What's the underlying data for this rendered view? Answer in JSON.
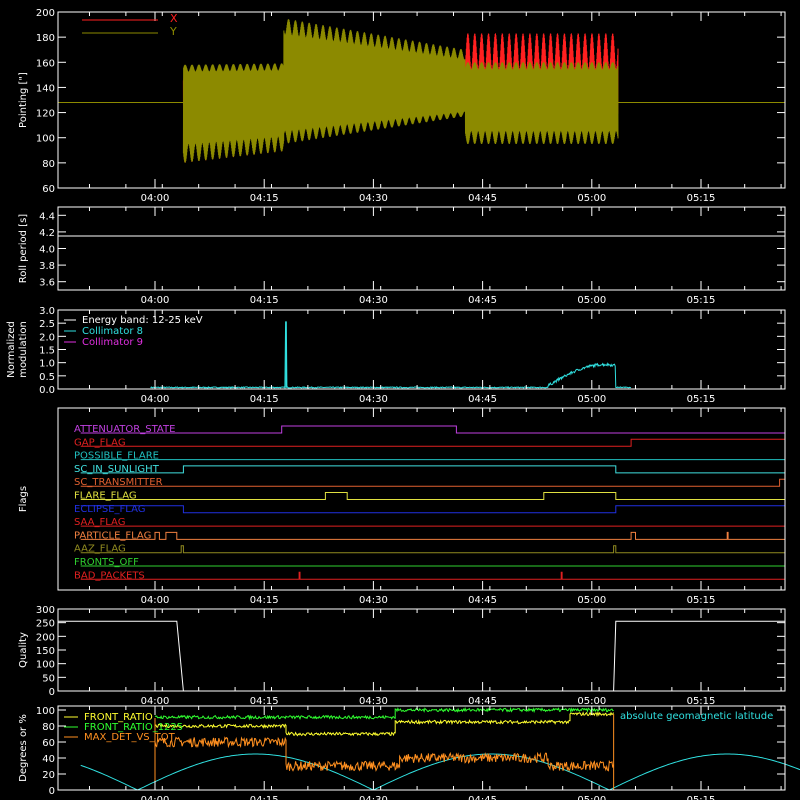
{
  "time_ticks": [
    "04:00",
    "04:15",
    "04:30",
    "04:45",
    "05:00",
    "05:15"
  ],
  "panels": {
    "pointing": {
      "ylabel": "Pointing [\"]",
      "yticks": [
        "60",
        "80",
        "100",
        "120",
        "140",
        "160",
        "180",
        "200"
      ],
      "legend": [
        {
          "name": "X",
          "color": "#ff2020"
        },
        {
          "name": "Y",
          "color": "#8c8a00"
        }
      ]
    },
    "roll": {
      "ylabel": "Roll period [s]",
      "yticks": [
        "3.6",
        "3.8",
        "4.0",
        "4.2",
        "4.4"
      ]
    },
    "modulation": {
      "ylabel_line1": "Normalized",
      "ylabel_line2": "modulation",
      "yticks": [
        "0.0",
        "0.5",
        "1.0",
        "1.5",
        "2.0",
        "2.5",
        "3.0"
      ],
      "legend": [
        {
          "name": "Energy band: 12-25 keV",
          "color": "#ffffff"
        },
        {
          "name": "Collimator 8",
          "color": "#30e0e0"
        },
        {
          "name": "Collimator 9",
          "color": "#e030e0"
        }
      ]
    },
    "flags": {
      "ylabel": "Flags",
      "rows": [
        {
          "name": "ATTENUATOR_STATE",
          "color": "#c040e0"
        },
        {
          "name": "GAP_FLAG",
          "color": "#e02020"
        },
        {
          "name": "POSSIBLE_FLARE",
          "color": "#20c0c0"
        },
        {
          "name": "SC_IN_SUNLIGHT",
          "color": "#40e0e0"
        },
        {
          "name": "SC_TRANSMITTER",
          "color": "#e06030"
        },
        {
          "name": "FLARE_FLAG",
          "color": "#e0e040"
        },
        {
          "name": "ECLIPSE_FLAG",
          "color": "#2030e0"
        },
        {
          "name": "SAA_FLAG",
          "color": "#e02020"
        },
        {
          "name": "PARTICLE_FLAG",
          "color": "#f08040"
        },
        {
          "name": "AAZ_FLAG",
          "color": "#908a20"
        },
        {
          "name": "FRONTS_OFF",
          "color": "#30d030"
        },
        {
          "name": "BAD_PACKETS",
          "color": "#e02020"
        }
      ]
    },
    "quality": {
      "ylabel": "Quality",
      "yticks": [
        "0",
        "50",
        "100",
        "150",
        "200",
        "250",
        "300"
      ]
    },
    "ratios": {
      "ylabel": "Degrees or %",
      "yticks": [
        "0",
        "20",
        "40",
        "60",
        "80",
        "100"
      ],
      "legend": [
        {
          "name": "FRONT_RATIO",
          "color": "#ffff30"
        },
        {
          "name": "FRONT_RATIO_1225",
          "color": "#30ff30"
        },
        {
          "name": "MAX_DET_VS_TOT",
          "color": "#ff9020"
        }
      ],
      "annotation": "absolute geomagnetic latitude",
      "annotation_color": "#30e0e0"
    }
  },
  "chart_data": [
    {
      "type": "line",
      "title": "",
      "ylabel": "Pointing [\"]",
      "ylim": [
        60,
        200
      ],
      "x_range_hours": [
        3.83,
        5.5
      ],
      "series": [
        {
          "name": "X",
          "color": "#ff2020",
          "envelope": [
            [
              4.065,
              75,
              158
            ],
            [
              4.3,
              95,
              165
            ],
            [
              4.7,
              120,
              140
            ],
            [
              4.7,
              100,
              185
            ],
            [
              5.06,
              105,
              182
            ]
          ]
        },
        {
          "name": "Y",
          "color": "#8c8a00",
          "envelope": [
            [
              4.065,
              80,
              160
            ],
            [
              4.3,
              100,
              196
            ],
            [
              4.7,
              115,
              170
            ],
            [
              4.7,
              97,
              163
            ],
            [
              5.06,
              80,
              170
            ]
          ]
        }
      ],
      "baseline": 128
    },
    {
      "type": "line",
      "ylabel": "Roll period [s]",
      "ylim": [
        3.5,
        4.5
      ],
      "series": [
        {
          "name": "",
          "values_const": 4.15
        }
      ]
    },
    {
      "type": "line",
      "ylabel": "Normalized modulation",
      "ylim": [
        0,
        3
      ],
      "series": [
        {
          "name": "Collimator 8",
          "color": "#30e0e0",
          "baseline": 0.05,
          "spike": [
            4.3,
            2.55
          ],
          "bump": [
            [
              4.9,
              0.1
            ],
            [
              5.0,
              0.75
            ],
            [
              5.05,
              0.9
            ],
            [
              5.07,
              0.1
            ]
          ]
        }
      ]
    },
    {
      "type": "line",
      "ylabel": "Quality",
      "ylim": [
        0,
        300
      ],
      "series": [
        {
          "name": "Quality",
          "values": [
            [
              3.83,
              255
            ],
            [
              4.05,
              255
            ],
            [
              4.06,
              0
            ],
            [
              5.05,
              0
            ],
            [
              5.06,
              255
            ],
            [
              5.5,
              255
            ]
          ]
        }
      ]
    },
    {
      "type": "line",
      "ylabel": "Degrees or %",
      "ylim": [
        0,
        100
      ],
      "series": [
        {
          "name": "FRONT_RATIO",
          "color": "#ffff30",
          "segments": [
            [
              4.0,
              4.3,
              80
            ],
            [
              4.3,
              4.55,
              70
            ],
            [
              4.55,
              4.95,
              85
            ],
            [
              4.95,
              5.05,
              95
            ]
          ]
        },
        {
          "name": "FRONT_RATIO_1225",
          "color": "#30ff30",
          "segments": [
            [
              4.0,
              4.55,
              90
            ],
            [
              4.55,
              5.05,
              100
            ]
          ]
        },
        {
          "name": "MAX_DET_VS_TOT",
          "color": "#ff9020",
          "segments": [
            [
              4.0,
              4.3,
              60
            ],
            [
              4.3,
              4.55,
              30
            ],
            [
              4.55,
              4.9,
              40
            ],
            [
              4.9,
              5.05,
              30
            ]
          ]
        },
        {
          "name": "absolute geomagnetic latitude",
          "color": "#30e0e0",
          "shape": "abs-sine",
          "peak": 45
        }
      ]
    }
  ]
}
